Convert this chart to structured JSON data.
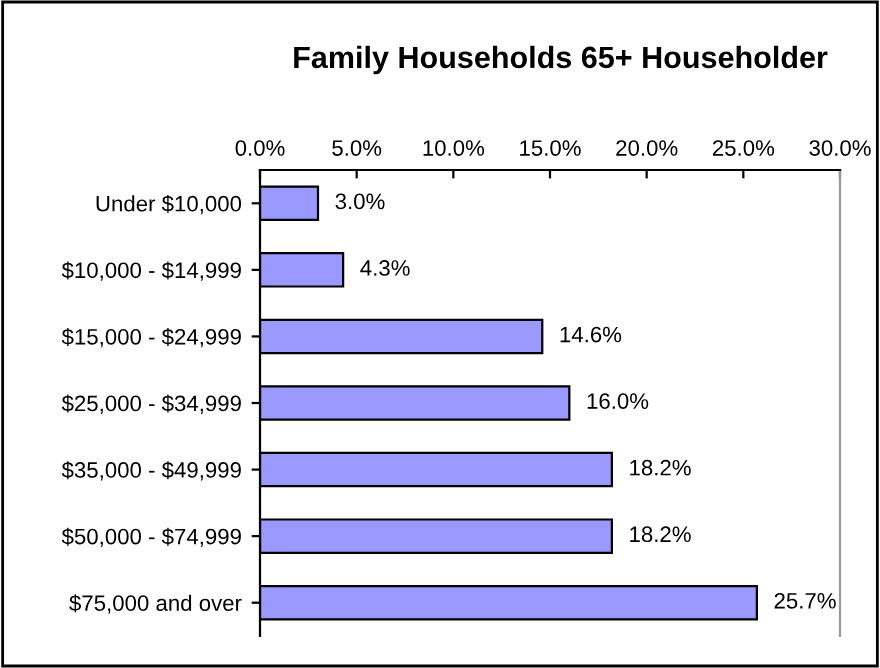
{
  "chart_data": {
    "type": "bar",
    "orientation": "horizontal",
    "title": "Family Households 65+ Householder",
    "categories": [
      "Under $10,000",
      "$10,000 - $14,999",
      "$15,000 - $24,999",
      "$25,000 - $34,999",
      "$35,000 - $49,999",
      "$50,000 - $74,999",
      "$75,000 and over"
    ],
    "values": [
      3.0,
      4.3,
      14.6,
      16.0,
      18.2,
      18.2,
      25.7
    ],
    "value_labels": [
      "3.0%",
      "4.3%",
      "14.6%",
      "16.0%",
      "18.2%",
      "18.2%",
      "25.7%"
    ],
    "color": "#9999ff",
    "xlim": [
      0,
      30
    ],
    "xticks": [
      {
        "value": 0,
        "label": "0.0%"
      },
      {
        "value": 5,
        "label": "5.0%"
      },
      {
        "value": 10,
        "label": "10.0%"
      },
      {
        "value": 15,
        "label": "15.0%"
      },
      {
        "value": 20,
        "label": "20.0%"
      },
      {
        "value": 25,
        "label": "25.0%"
      },
      {
        "value": 30,
        "label": "30.0%"
      }
    ],
    "grid": false,
    "legend": false
  }
}
